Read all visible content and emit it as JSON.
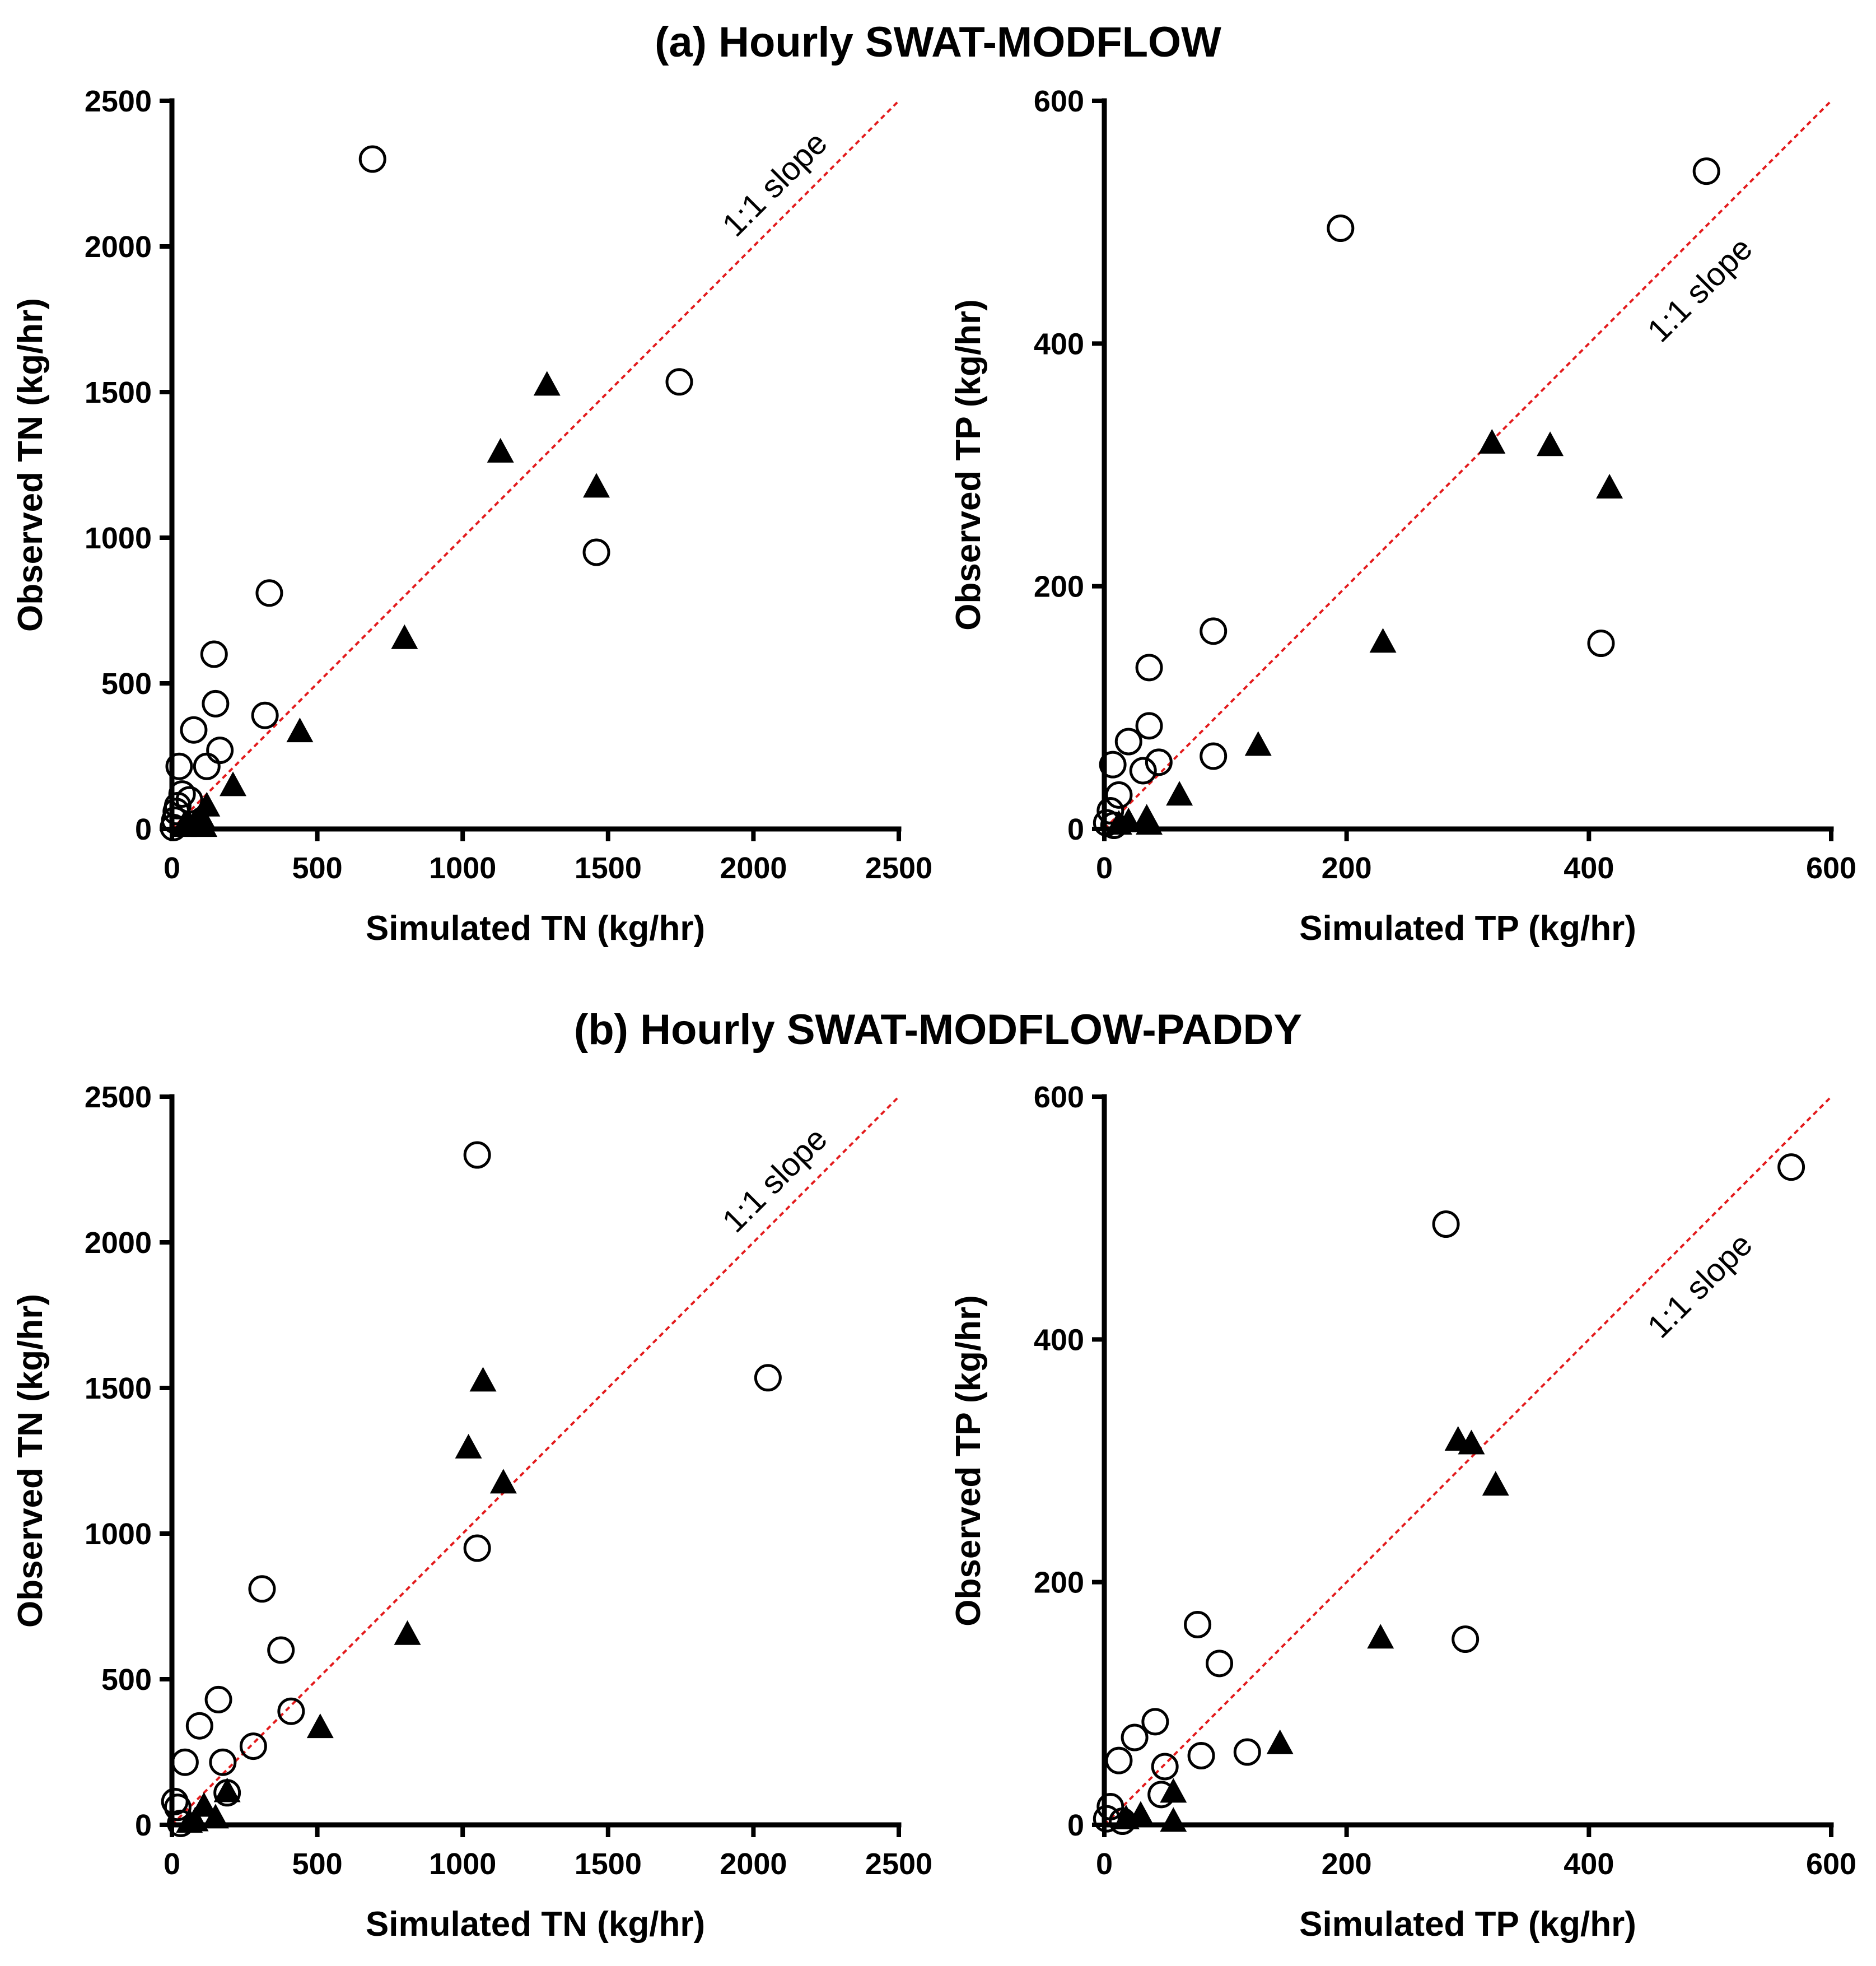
{
  "figure": {
    "panel_a_title": "(a) Hourly SWAT-MODFLOW",
    "panel_b_title": "(b) Hourly SWAT-MODFLOW-PADDY"
  },
  "colors": {
    "marker": "#000000",
    "slope_line": "#e31a1c",
    "axis": "#000000"
  },
  "chart_data": [
    {
      "id": "a_tn",
      "type": "scatter",
      "xlabel": "Simulated TN (kg/hr)",
      "ylabel": "Observed TN (kg/hr)",
      "xlim": [
        0,
        2500
      ],
      "ylim": [
        0,
        2500
      ],
      "xticks": [
        "0",
        "500",
        "1000",
        "1500",
        "2000",
        "2500"
      ],
      "yticks": [
        "0",
        "500",
        "1000",
        "1500",
        "2000",
        "2500"
      ],
      "slope_label": "1:1 slope",
      "series": [
        {
          "name": "circles",
          "marker": "circle",
          "x": [
            690,
            1745,
            1460,
            335,
            145,
            150,
            320,
            75,
            165,
            120,
            25,
            35,
            60,
            20,
            10,
            5,
            15
          ],
          "y": [
            2300,
            1535,
            950,
            810,
            600,
            430,
            390,
            340,
            270,
            215,
            215,
            120,
            100,
            80,
            30,
            5,
            60
          ]
        },
        {
          "name": "triangles",
          "marker": "triangle",
          "x": [
            1290,
            1130,
            1460,
            800,
            440,
            210,
            120,
            100,
            80,
            60,
            40,
            110
          ],
          "y": [
            1520,
            1290,
            1170,
            650,
            330,
            145,
            75,
            40,
            20,
            10,
            5,
            5
          ]
        }
      ]
    },
    {
      "id": "a_tp",
      "type": "scatter",
      "xlabel": "Simulated TP (kg/hr)",
      "ylabel": "Observed TP (kg/hr)",
      "xlim": [
        0,
        600
      ],
      "ylim": [
        0,
        600
      ],
      "xticks": [
        "0",
        "200",
        "400",
        "600"
      ],
      "yticks": [
        "0",
        "200",
        "400",
        "600"
      ],
      "slope_label": "1:1 slope",
      "series": [
        {
          "name": "circles",
          "marker": "circle",
          "x": [
            497,
            195,
            90,
            410,
            37,
            37,
            20,
            90,
            45,
            32,
            7,
            12,
            5,
            2,
            8
          ],
          "y": [
            542,
            495,
            163,
            153,
            133,
            85,
            72,
            60,
            55,
            48,
            53,
            28,
            15,
            5,
            3
          ]
        },
        {
          "name": "triangles",
          "marker": "triangle",
          "x": [
            320,
            368,
            417,
            230,
            127,
            62,
            35,
            20,
            12,
            37
          ],
          "y": [
            317,
            315,
            280,
            153,
            68,
            27,
            8,
            5,
            3,
            3
          ]
        }
      ]
    },
    {
      "id": "b_tn",
      "type": "scatter",
      "xlabel": "Simulated TN (kg/hr)",
      "ylabel": "Observed TN (kg/hr)",
      "xlim": [
        0,
        2500
      ],
      "ylim": [
        0,
        2500
      ],
      "xticks": [
        "0",
        "500",
        "1000",
        "1500",
        "2000",
        "2500"
      ],
      "yticks": [
        "0",
        "500",
        "1000",
        "1500",
        "2000",
        "2500"
      ],
      "slope_label": "1:1 slope",
      "series": [
        {
          "name": "circles",
          "marker": "circle",
          "x": [
            1050,
            2050,
            1050,
            310,
            375,
            160,
            410,
            95,
            280,
            175,
            45,
            190,
            20,
            10,
            30
          ],
          "y": [
            2300,
            1535,
            950,
            810,
            600,
            430,
            390,
            340,
            270,
            215,
            215,
            110,
            60,
            80,
            5
          ]
        },
        {
          "name": "triangles",
          "marker": "triangle",
          "x": [
            1070,
            1020,
            1140,
            810,
            510,
            190,
            110,
            150,
            80,
            60
          ],
          "y": [
            1520,
            1290,
            1170,
            650,
            330,
            110,
            60,
            20,
            10,
            5
          ]
        }
      ]
    },
    {
      "id": "b_tp",
      "type": "scatter",
      "xlabel": "Simulated TP (kg/hr)",
      "ylabel": "Observed TP (kg/hr)",
      "xlim": [
        0,
        600
      ],
      "ylim": [
        0,
        600
      ],
      "xticks": [
        "0",
        "200",
        "400",
        "600"
      ],
      "yticks": [
        "0",
        "200",
        "400",
        "600"
      ],
      "slope_label": "1:1 slope",
      "series": [
        {
          "name": "circles",
          "marker": "circle",
          "x": [
            567,
            282,
            77,
            298,
            95,
            42,
            25,
            118,
            80,
            50,
            12,
            47,
            5,
            2,
            15
          ],
          "y": [
            542,
            495,
            165,
            153,
            133,
            85,
            72,
            60,
            57,
            48,
            53,
            25,
            15,
            5,
            3
          ]
        },
        {
          "name": "triangles",
          "marker": "triangle",
          "x": [
            292,
            303,
            323,
            228,
            145,
            57,
            30,
            18,
            57
          ],
          "y": [
            316,
            313,
            279,
            153,
            66,
            26,
            7,
            4,
            2
          ]
        }
      ]
    }
  ]
}
